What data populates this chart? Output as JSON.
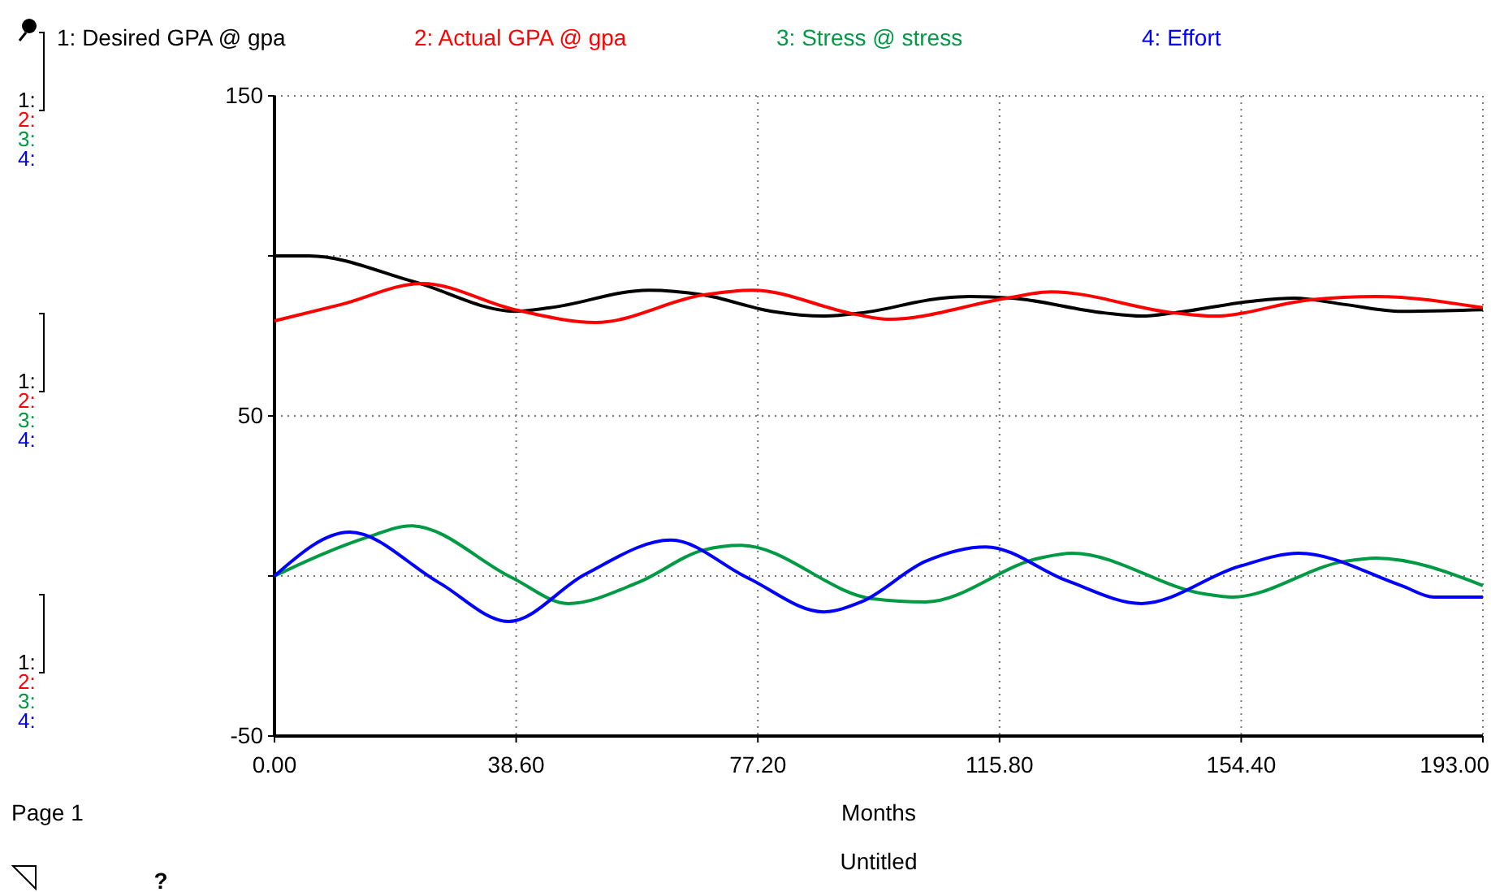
{
  "chart_data": {
    "type": "line",
    "xlabel": "Months",
    "legend": "top",
    "grid": true,
    "line_style": "solid",
    "marker": "none",
    "xlim": [
      0,
      193
    ],
    "xticks": [
      {
        "value": 0,
        "label": "0.00"
      },
      {
        "value": 38.6,
        "label": "38.60"
      },
      {
        "value": 77.2,
        "label": "77.20"
      },
      {
        "value": 115.8,
        "label": "115.80"
      },
      {
        "value": 154.4,
        "label": "154.40"
      },
      {
        "value": 193,
        "label": "193.00"
      }
    ],
    "ylim": [
      -50,
      150
    ],
    "yticks": [
      -50,
      {
        "value": 0,
        "label": null
      },
      50,
      {
        "value": 100,
        "label": null
      },
      150
    ],
    "series": [
      {
        "name": "1: Desired GPA @ gpa",
        "color": "#000000",
        "x": [
          0,
          5.5,
          22.3,
          38.4,
          44,
          59.8,
          68.5,
          79.4,
          87.7,
          93.7,
          106.7,
          111,
          117.8,
          132.5,
          138.5,
          143.7,
          155.9,
          162.9,
          171,
          180,
          193
        ],
        "values": [
          100,
          100,
          91.9,
          82.7,
          83.8,
          89.3,
          87.8,
          82.7,
          81.2,
          82.2,
          86.8,
          87.3,
          86.8,
          82.2,
          81.2,
          82.2,
          85.8,
          86.8,
          84.8,
          82.7,
          83.2
        ]
      },
      {
        "name": "2: Actual GPA @ gpa",
        "color": "#ff0000",
        "x": [
          0,
          10.6,
          23.6,
          38.4,
          51.3,
          68.5,
          76.3,
          92.9,
          98,
          117,
          124,
          143.7,
          150,
          165.5,
          175.9,
          193
        ],
        "values": [
          79.7,
          84.8,
          91.4,
          83.2,
          79.2,
          87.8,
          89.3,
          81.7,
          80.2,
          86.8,
          88.8,
          82.2,
          81.2,
          86.3,
          87.3,
          83.8
        ]
      },
      {
        "name": "3: Stress @ stress",
        "color": "#009944",
        "x": [
          0,
          8,
          15,
          21.8,
          37.9,
          46.9,
          58.1,
          68.5,
          74.5,
          95.5,
          104,
          122.2,
          127.4,
          148.5,
          153,
          171,
          175.9,
          193
        ],
        "values": [
          0,
          7.1,
          12.2,
          15.7,
          -0.5,
          -8.6,
          -2,
          8.1,
          9.6,
          -7.1,
          -8.1,
          5.6,
          7.1,
          -5.6,
          -6.6,
          4.6,
          5.6,
          -3
        ]
      },
      {
        "name": "4: Effort",
        "color": "#0000ff",
        "x": [
          0,
          12,
          26.2,
          37.4,
          49.6,
          63.3,
          75.5,
          87.7,
          93.7,
          104,
          113.6,
          126.6,
          138.5,
          154.1,
          163.6,
          180,
          185.2,
          193
        ],
        "values": [
          0,
          13.7,
          -2,
          -14.2,
          0.5,
          11.2,
          -0.5,
          -11.2,
          -8.1,
          4.6,
          9.1,
          -1.5,
          -8.6,
          3,
          7.1,
          -3,
          -6.6,
          -6.6
        ]
      }
    ],
    "annotations": [
      "1:",
      "2:",
      "3:",
      "4:",
      "1:",
      "2:",
      "3:",
      "4:",
      "1:",
      "2:",
      "3:",
      "4:",
      "Page 1",
      "Untitled",
      "?"
    ]
  }
}
